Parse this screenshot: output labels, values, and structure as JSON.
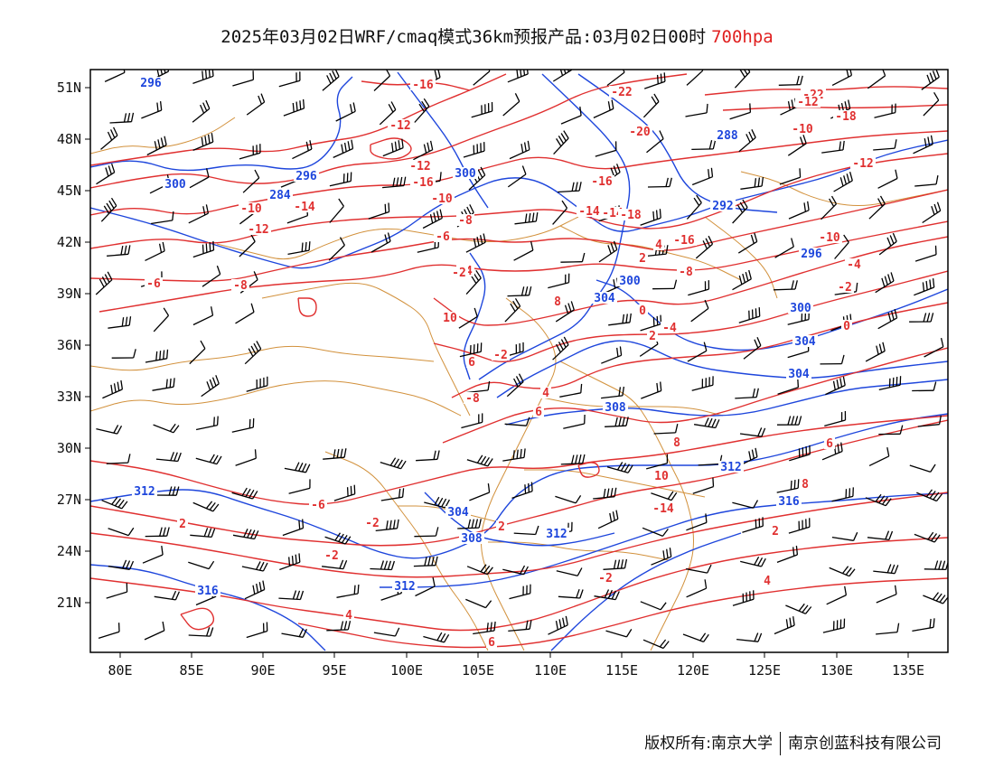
{
  "title": {
    "main": "2025年03月02日WRF/cmaq模式36km预报产品:03月02日00时",
    "level": "700hpa"
  },
  "colors": {
    "temperature_contour": "#e03030",
    "height_contour": "#1e46dc",
    "boundary": "#d2913c",
    "wind_barb": "#000000",
    "level_text": "#e02020"
  },
  "axes": {
    "lat_labels": [
      "51N",
      "48N",
      "45N",
      "42N",
      "39N",
      "36N",
      "33N",
      "30N",
      "27N",
      "24N",
      "21N"
    ],
    "lon_labels": [
      "80E",
      "85E",
      "90E",
      "95E",
      "100E",
      "105E",
      "110E",
      "115E",
      "120E",
      "125E",
      "130E",
      "135E"
    ]
  },
  "temperature_labels": [
    "-16",
    "-22",
    "-22",
    "-20",
    "-18",
    "-16",
    "-14",
    "-12",
    "-12",
    "-10",
    "-8",
    "-6",
    "-4",
    "-2",
    "0",
    "2",
    "4",
    "6",
    "8",
    "10",
    "-14",
    "-12",
    "-10",
    "-16",
    "-18",
    "-14",
    "-16",
    "-12",
    "-10",
    "-8",
    "-4",
    "-2",
    "0",
    "-6",
    "-8",
    "-10",
    "-12",
    "-14",
    "-8",
    "-6",
    "-2",
    "2",
    "-2",
    "2",
    "4",
    "6",
    "-2",
    "2",
    "4",
    "6",
    "8",
    "10",
    "8",
    "6",
    "4",
    "2",
    "-2",
    "-4"
  ],
  "height_labels": [
    "296",
    "300",
    "296",
    "300",
    "284",
    "288",
    "292",
    "296",
    "300",
    "304",
    "304",
    "300",
    "308",
    "304",
    "312",
    "312",
    "316",
    "308",
    "312",
    "304",
    "312",
    "316"
  ],
  "footer": {
    "copyright": "版权所有:南京大学",
    "company": "南京创蓝科技有限公司"
  }
}
